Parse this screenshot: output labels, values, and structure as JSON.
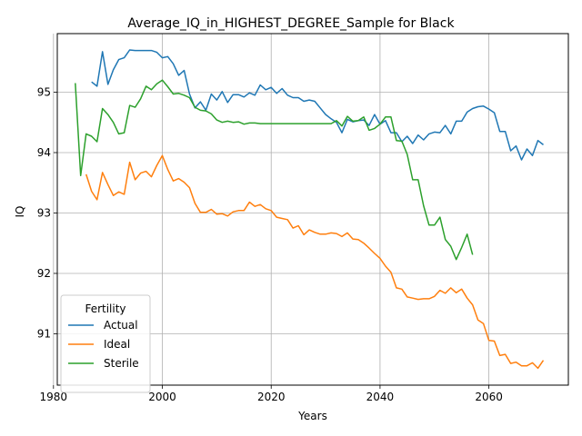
{
  "chart_data": {
    "type": "line",
    "title": "Average_IQ_in_HIGHEST_DEGREE_Sample for Black",
    "xlabel": "Years",
    "ylabel": "IQ",
    "xlim": [
      1980.7,
      2074.6
    ],
    "ylim": [
      90.15,
      95.97
    ],
    "xticks": [
      1980,
      2000,
      2020,
      2040,
      2060
    ],
    "yticks": [
      91,
      92,
      93,
      94,
      95
    ],
    "grid": true,
    "legend": {
      "title": "Fertility",
      "placement": "lower-left"
    },
    "series": [
      {
        "name": "Actual",
        "color": "#1f77b4",
        "x": [
          1987,
          1988,
          1989,
          1990,
          1991,
          1992,
          1993,
          1994,
          1995,
          1996,
          1997,
          1998,
          1999,
          2000,
          2001,
          2002,
          2003,
          2004,
          2005,
          2006,
          2007,
          2008,
          2009,
          2010,
          2011,
          2012,
          2013,
          2014,
          2015,
          2016,
          2017,
          2018,
          2019,
          2020,
          2021,
          2022,
          2023,
          2024,
          2025,
          2026,
          2027,
          2028,
          2029,
          2030,
          2031,
          2032,
          2033,
          2034,
          2035,
          2036,
          2037,
          2038,
          2039,
          2040,
          2041,
          2042,
          2043,
          2044,
          2045,
          2046,
          2047,
          2048,
          2049,
          2050,
          2051,
          2052,
          2053,
          2054,
          2055,
          2056,
          2057,
          2058,
          2059,
          2060,
          2061,
          2062,
          2063,
          2064,
          2065,
          2066,
          2067,
          2068,
          2069,
          2070
        ],
        "values": [
          95.17,
          95.1,
          95.67,
          95.13,
          95.37,
          95.54,
          95.57,
          95.7,
          95.69,
          95.69,
          95.69,
          95.69,
          95.66,
          95.57,
          95.59,
          95.47,
          95.28,
          95.36,
          94.97,
          94.74,
          94.84,
          94.7,
          94.97,
          94.87,
          95.01,
          94.83,
          94.96,
          94.96,
          94.92,
          94.99,
          94.95,
          95.12,
          95.04,
          95.08,
          94.98,
          95.06,
          94.95,
          94.91,
          94.91,
          94.85,
          94.87,
          94.85,
          94.74,
          94.63,
          94.56,
          94.5,
          94.33,
          94.55,
          94.51,
          94.53,
          94.54,
          94.45,
          94.63,
          94.47,
          94.53,
          94.33,
          94.33,
          94.18,
          94.27,
          94.15,
          94.29,
          94.21,
          94.31,
          94.34,
          94.33,
          94.45,
          94.31,
          94.52,
          94.52,
          94.67,
          94.73,
          94.76,
          94.77,
          94.72,
          94.66,
          94.35,
          94.35,
          94.03,
          94.11,
          93.88,
          94.06,
          93.95,
          94.2,
          94.13
        ]
      },
      {
        "name": "Ideal",
        "color": "#ff7f0e",
        "x": [
          1986,
          1987,
          1988,
          1989,
          1990,
          1991,
          1992,
          1993,
          1994,
          1995,
          1996,
          1997,
          1998,
          1999,
          2000,
          2001,
          2002,
          2003,
          2004,
          2005,
          2006,
          2007,
          2008,
          2009,
          2010,
          2011,
          2012,
          2013,
          2014,
          2015,
          2016,
          2017,
          2018,
          2019,
          2020,
          2021,
          2022,
          2023,
          2024,
          2025,
          2026,
          2027,
          2028,
          2029,
          2030,
          2031,
          2032,
          2033,
          2034,
          2035,
          2036,
          2037,
          2038,
          2039,
          2040,
          2041,
          2042,
          2043,
          2044,
          2045,
          2046,
          2047,
          2048,
          2049,
          2050,
          2051,
          2052,
          2053,
          2054,
          2055,
          2056,
          2057,
          2058,
          2059,
          2060,
          2061,
          2062,
          2063,
          2064,
          2065,
          2066,
          2067,
          2068,
          2069,
          2070
        ],
        "values": [
          93.64,
          93.36,
          93.22,
          93.67,
          93.47,
          93.29,
          93.35,
          93.31,
          93.84,
          93.55,
          93.66,
          93.69,
          93.6,
          93.79,
          93.95,
          93.72,
          93.53,
          93.57,
          93.51,
          93.42,
          93.16,
          93.01,
          93.01,
          93.06,
          92.98,
          92.99,
          92.95,
          93.02,
          93.04,
          93.04,
          93.18,
          93.11,
          93.14,
          93.07,
          93.04,
          92.93,
          92.91,
          92.89,
          92.75,
          92.79,
          92.64,
          92.72,
          92.68,
          92.65,
          92.65,
          92.67,
          92.66,
          92.61,
          92.67,
          92.57,
          92.56,
          92.5,
          92.42,
          92.33,
          92.25,
          92.12,
          92.02,
          91.76,
          91.74,
          91.61,
          91.59,
          91.57,
          91.58,
          91.58,
          91.62,
          91.72,
          91.67,
          91.76,
          91.68,
          91.74,
          91.59,
          91.48,
          91.23,
          91.17,
          90.89,
          90.88,
          90.64,
          90.66,
          90.51,
          90.53,
          90.47,
          90.47,
          90.52,
          90.43,
          90.56
        ]
      },
      {
        "name": "Sterile",
        "color": "#2ca02c",
        "x": [
          1984,
          1985,
          1986,
          1987,
          1988,
          1989,
          1990,
          1991,
          1992,
          1993,
          1994,
          1995,
          1996,
          1997,
          1998,
          1999,
          2000,
          2001,
          2002,
          2003,
          2004,
          2005,
          2006,
          2007,
          2008,
          2009,
          2010,
          2011,
          2012,
          2013,
          2014,
          2015,
          2016,
          2017,
          2018,
          2019,
          2020,
          2021,
          2022,
          2023,
          2024,
          2025,
          2026,
          2027,
          2028,
          2029,
          2030,
          2031,
          2032,
          2033,
          2034,
          2035,
          2036,
          2037,
          2038,
          2039,
          2040,
          2041,
          2042,
          2043,
          2044,
          2045,
          2046,
          2047,
          2048,
          2049,
          2050,
          2051,
          2052,
          2053,
          2054,
          2055,
          2056,
          2057
        ],
        "values": [
          95.15,
          93.62,
          94.31,
          94.27,
          94.18,
          94.73,
          94.63,
          94.5,
          94.31,
          94.33,
          94.78,
          94.75,
          94.89,
          95.1,
          95.04,
          95.14,
          95.2,
          95.09,
          94.97,
          94.98,
          94.95,
          94.91,
          94.75,
          94.7,
          94.69,
          94.64,
          94.54,
          94.5,
          94.52,
          94.5,
          94.51,
          94.47,
          94.49,
          94.49,
          94.48,
          94.48,
          94.48,
          94.48,
          94.48,
          94.48,
          94.48,
          94.48,
          94.48,
          94.48,
          94.48,
          94.48,
          94.48,
          94.48,
          94.53,
          94.44,
          94.6,
          94.52,
          94.53,
          94.59,
          94.37,
          94.4,
          94.47,
          94.59,
          94.59,
          94.2,
          94.19,
          93.97,
          93.55,
          93.55,
          93.12,
          92.8,
          92.8,
          92.93,
          92.56,
          92.45,
          92.23,
          92.43,
          92.65,
          92.31
        ]
      }
    ]
  }
}
